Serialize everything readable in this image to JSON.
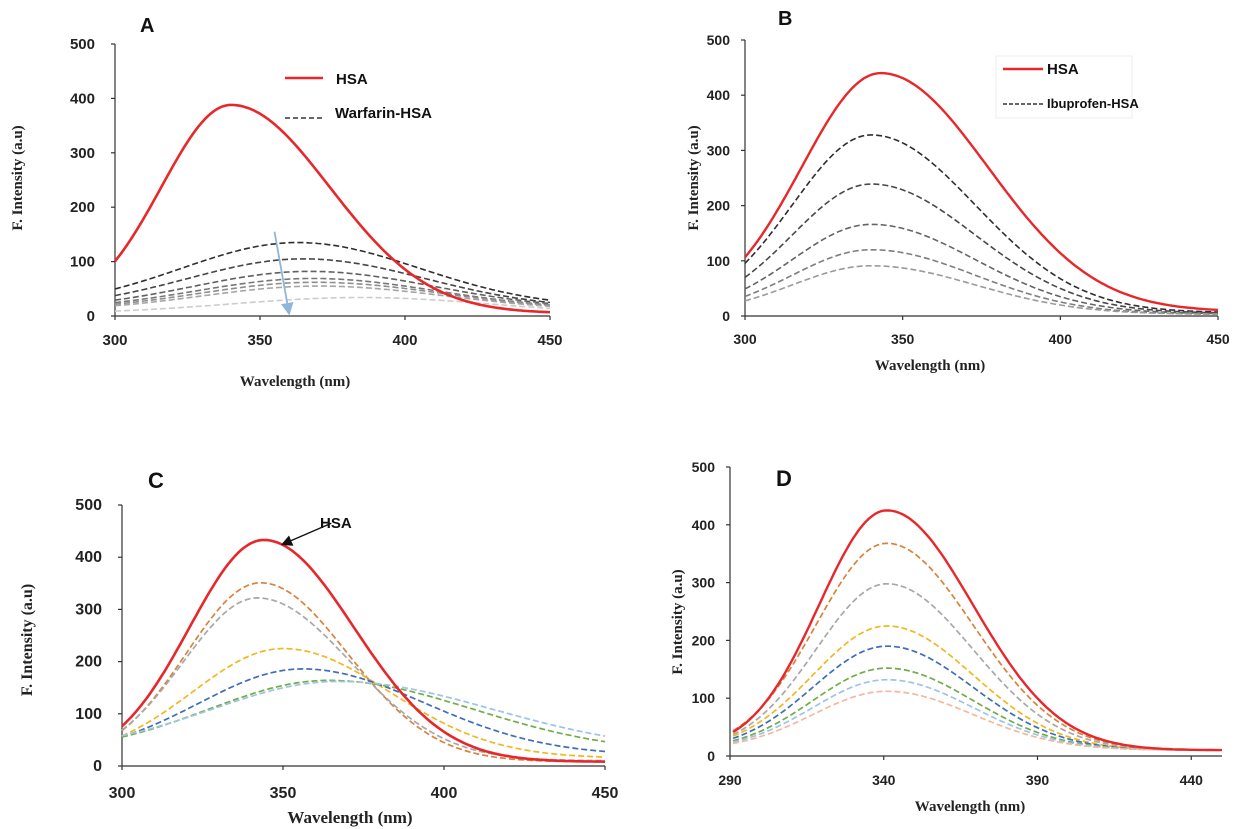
{
  "chart_data": [
    {
      "panel": "A",
      "type": "line",
      "xlabel": "Wavelength (nm)",
      "ylabel": "F. Intensity (a.u)",
      "xlim": [
        300,
        450
      ],
      "ylim": [
        0,
        500
      ],
      "xticks": [
        300,
        350,
        400,
        450
      ],
      "yticks": [
        0,
        100,
        200,
        300,
        400,
        500
      ],
      "legend": [
        {
          "label": "HSA",
          "style": "solid",
          "color": "#e8272a"
        },
        {
          "label": "Warfarin-HSA",
          "style": "dashed",
          "color": "#333333"
        }
      ],
      "arrow": {
        "from": [
          355,
          155
        ],
        "to": [
          360,
          0
        ],
        "color": "#8fb5d8"
      },
      "series": [
        {
          "style": "solid",
          "color": "#e8272a",
          "width": 2.6,
          "peak": 340,
          "amp": 383,
          "sl": 24,
          "sr": 34,
          "base": 5,
          "x0": 300,
          "x1": 450
        },
        {
          "style": "dashed",
          "color": "#2e2e2e",
          "width": 1.6,
          "peak": 363,
          "amp": 120,
          "sl": 40,
          "sr": 42,
          "base": 15,
          "x0": 300,
          "x1": 450
        },
        {
          "style": "dashed",
          "color": "#444444",
          "width": 1.6,
          "peak": 365,
          "amp": 92,
          "sl": 40,
          "sr": 42,
          "base": 13,
          "x0": 300,
          "x1": 450
        },
        {
          "style": "dashed",
          "color": "#606060",
          "width": 1.6,
          "peak": 367,
          "amp": 70,
          "sl": 40,
          "sr": 43,
          "base": 12,
          "x0": 300,
          "x1": 450
        },
        {
          "style": "dashed",
          "color": "#777777",
          "width": 1.6,
          "peak": 368,
          "amp": 58,
          "sl": 40,
          "sr": 43,
          "base": 11,
          "x0": 300,
          "x1": 450
        },
        {
          "style": "dashed",
          "color": "#8d8d8d",
          "width": 1.6,
          "peak": 369,
          "amp": 52,
          "sl": 40,
          "sr": 44,
          "base": 10,
          "x0": 300,
          "x1": 450
        },
        {
          "style": "dashed",
          "color": "#a5a5a5",
          "width": 1.6,
          "peak": 370,
          "amp": 46,
          "sl": 40,
          "sr": 44,
          "base": 9,
          "x0": 300,
          "x1": 450
        },
        {
          "style": "dashed",
          "color": "#cccccc",
          "width": 1.6,
          "peak": 385,
          "amp": 30,
          "sl": 45,
          "sr": 44,
          "base": 4,
          "x0": 300,
          "x1": 450
        }
      ]
    },
    {
      "panel": "B",
      "type": "line",
      "xlabel": "Wavelength (nm)",
      "ylabel": "F. Intensity (a.u)",
      "xlim": [
        300,
        450
      ],
      "ylim": [
        0,
        500
      ],
      "xticks": [
        300,
        350,
        400,
        450
      ],
      "yticks": [
        0,
        100,
        200,
        300,
        400,
        500
      ],
      "legend": [
        {
          "label": "HSA",
          "style": "solid",
          "color": "#e8272a"
        },
        {
          "label": "Ibuprofen-HSA",
          "style": "dashed",
          "color": "#333333"
        }
      ],
      "series": [
        {
          "style": "solid",
          "color": "#e8272a",
          "width": 2.4,
          "peak": 343,
          "amp": 432,
          "sl": 25,
          "sr": 34,
          "base": 8,
          "x0": 300,
          "x1": 450
        },
        {
          "style": "dashed",
          "color": "#2e2e2e",
          "width": 1.6,
          "peak": 340,
          "amp": 322,
          "sl": 25,
          "sr": 33,
          "base": 6,
          "x0": 300,
          "x1": 450
        },
        {
          "style": "dashed",
          "color": "#484848",
          "width": 1.6,
          "peak": 340,
          "amp": 234,
          "sl": 25,
          "sr": 33,
          "base": 5,
          "x0": 300,
          "x1": 450
        },
        {
          "style": "dashed",
          "color": "#646464",
          "width": 1.6,
          "peak": 340,
          "amp": 162,
          "sl": 25,
          "sr": 33,
          "base": 4,
          "x0": 300,
          "x1": 450
        },
        {
          "style": "dashed",
          "color": "#7e7e7e",
          "width": 1.6,
          "peak": 340,
          "amp": 117,
          "sl": 25,
          "sr": 33,
          "base": 3,
          "x0": 300,
          "x1": 450
        },
        {
          "style": "dashed",
          "color": "#9a9a9a",
          "width": 1.6,
          "peak": 340,
          "amp": 88,
          "sl": 25,
          "sr": 33,
          "base": 3,
          "x0": 300,
          "x1": 450
        }
      ]
    },
    {
      "panel": "C",
      "type": "line",
      "xlabel": "Wavelength (nm)",
      "ylabel": "F. Intensity (a.u)",
      "xlim": [
        300,
        450
      ],
      "ylim": [
        0,
        500
      ],
      "xticks": [
        300,
        350,
        400,
        450
      ],
      "yticks": [
        0,
        100,
        200,
        300,
        400,
        500
      ],
      "annotation": {
        "text": "HSA",
        "from": [
          365,
          465
        ],
        "to": [
          350,
          425
        ]
      },
      "series": [
        {
          "style": "solid",
          "color": "#e8272a",
          "width": 2.6,
          "peak": 344,
          "amp": 425,
          "sl": 23,
          "sr": 28,
          "base": 8,
          "x0": 300,
          "x1": 450
        },
        {
          "style": "dashed",
          "color": "#d9823d",
          "width": 1.7,
          "peak": 343,
          "amp": 343,
          "sl": 23,
          "sr": 27,
          "base": 8,
          "x0": 300,
          "x1": 450
        },
        {
          "style": "dashed",
          "color": "#a8a8a8",
          "width": 1.7,
          "peak": 342,
          "amp": 312,
          "sl": 23,
          "sr": 29,
          "base": 10,
          "x0": 300,
          "x1": 450
        },
        {
          "style": "dashed",
          "color": "#f0b820",
          "width": 1.7,
          "peak": 350,
          "amp": 210,
          "sl": 28,
          "sr": 33,
          "base": 15,
          "x0": 300,
          "x1": 450
        },
        {
          "style": "dashed",
          "color": "#3f6db8",
          "width": 1.7,
          "peak": 356,
          "amp": 166,
          "sl": 32,
          "sr": 38,
          "base": 20,
          "x0": 300,
          "x1": 450
        },
        {
          "style": "dashed",
          "color": "#70ad47",
          "width": 1.7,
          "peak": 364,
          "amp": 140,
          "sl": 37,
          "sr": 45,
          "base": 24,
          "x0": 300,
          "x1": 450
        },
        {
          "style": "dashed",
          "color": "#9dc3e6",
          "width": 1.7,
          "peak": 367,
          "amp": 135,
          "sl": 39,
          "sr": 48,
          "base": 27,
          "x0": 300,
          "x1": 450
        }
      ]
    },
    {
      "panel": "D",
      "type": "line",
      "xlabel": "Wavelength (nm)",
      "ylabel": "F. Intensity (a.u)",
      "xlim": [
        290,
        450
      ],
      "ylim": [
        0,
        500
      ],
      "xticks": [
        290,
        340,
        390,
        440
      ],
      "yticks": [
        0,
        100,
        200,
        300,
        400,
        500
      ],
      "series": [
        {
          "style": "solid",
          "color": "#e8272a",
          "width": 2.4,
          "peak": 341,
          "amp": 415,
          "sl": 22,
          "sr": 28,
          "base": 10,
          "x0": 291,
          "x1": 450
        },
        {
          "style": "dashed",
          "color": "#d9823d",
          "width": 1.7,
          "peak": 341,
          "amp": 358,
          "sl": 23,
          "sr": 28,
          "base": 10,
          "x0": 291,
          "x1": 450
        },
        {
          "style": "dashed",
          "color": "#a8a8a8",
          "width": 1.7,
          "peak": 341,
          "amp": 288,
          "sl": 23,
          "sr": 28,
          "base": 10,
          "x0": 291,
          "x1": 450
        },
        {
          "style": "dashed",
          "color": "#f0b820",
          "width": 1.7,
          "peak": 341,
          "amp": 215,
          "sl": 24,
          "sr": 28,
          "base": 10,
          "x0": 291,
          "x1": 450
        },
        {
          "style": "dashed",
          "color": "#3f6db8",
          "width": 1.7,
          "peak": 341,
          "amp": 180,
          "sl": 24,
          "sr": 28,
          "base": 10,
          "x0": 291,
          "x1": 450
        },
        {
          "style": "dashed",
          "color": "#70ad47",
          "width": 1.7,
          "peak": 341,
          "amp": 142,
          "sl": 24,
          "sr": 28,
          "base": 10,
          "x0": 291,
          "x1": 450
        },
        {
          "style": "dashed",
          "color": "#9dc3e6",
          "width": 1.7,
          "peak": 341,
          "amp": 122,
          "sl": 24,
          "sr": 28,
          "base": 10,
          "x0": 291,
          "x1": 450
        },
        {
          "style": "dashed",
          "color": "#f4b8a0",
          "width": 1.7,
          "peak": 341,
          "amp": 102,
          "sl": 24,
          "sr": 28,
          "base": 10,
          "x0": 291,
          "x1": 450
        }
      ]
    }
  ]
}
